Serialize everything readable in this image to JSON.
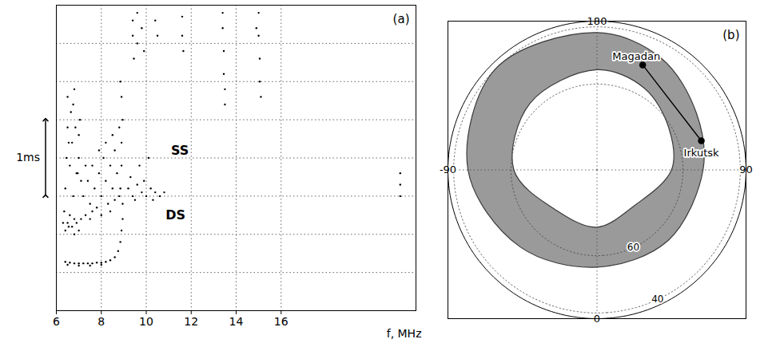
{
  "chart_data": [
    {
      "type": "scatter",
      "panel_label": "(a)",
      "x_label": "f, MHz",
      "xlim": [
        6,
        22
      ],
      "xticks": [
        6,
        8,
        10,
        12,
        14,
        16
      ],
      "ylim": [
        0,
        4
      ],
      "yticks": [
        0.5,
        1,
        1.5,
        2,
        2.5,
        3,
        3.5
      ],
      "grid": true,
      "tick_labels": "x",
      "color": "#000000",
      "points": [
        [
          6.4,
          0.64
        ],
        [
          6.6,
          0.63
        ],
        [
          6.8,
          0.62
        ],
        [
          7.0,
          0.62
        ],
        [
          7.2,
          0.62
        ],
        [
          7.4,
          0.62
        ],
        [
          7.6,
          0.62
        ],
        [
          7.8,
          0.63
        ],
        [
          8.0,
          0.63
        ],
        [
          8.2,
          0.64
        ],
        [
          8.4,
          0.66
        ],
        [
          8.6,
          0.7
        ],
        [
          8.75,
          0.78
        ],
        [
          8.85,
          0.9
        ],
        [
          8.9,
          1.05
        ],
        [
          8.95,
          1.2
        ],
        [
          6.5,
          0.6
        ],
        [
          7.0,
          0.59
        ],
        [
          7.5,
          0.59
        ],
        [
          8.0,
          0.6
        ],
        [
          6.35,
          1.3
        ],
        [
          6.4,
          1.6
        ],
        [
          6.45,
          2.0
        ],
        [
          6.5,
          2.4
        ],
        [
          6.5,
          2.8
        ],
        [
          6.55,
          1.1
        ],
        [
          6.6,
          1.9
        ],
        [
          6.65,
          2.6
        ],
        [
          6.7,
          2.2
        ],
        [
          6.75,
          1.5
        ],
        [
          6.8,
          2.9
        ],
        [
          6.85,
          2.4
        ],
        [
          6.9,
          1.8
        ],
        [
          6.4,
          1.05
        ],
        [
          6.6,
          1.25
        ],
        [
          6.8,
          1.2
        ],
        [
          6.55,
          2.2
        ],
        [
          6.75,
          2.7
        ],
        [
          6.3,
          1.15
        ],
        [
          6.5,
          1.15
        ],
        [
          6.7,
          1.1
        ],
        [
          6.9,
          1.15
        ],
        [
          7.1,
          1.2
        ],
        [
          7.3,
          1.25
        ],
        [
          7.5,
          1.2
        ],
        [
          6.8,
          1.0
        ],
        [
          7.0,
          1.05
        ],
        [
          7.2,
          1.5
        ],
        [
          7.4,
          1.7
        ],
        [
          7.5,
          1.4
        ],
        [
          7.6,
          1.9
        ],
        [
          7.7,
          1.6
        ],
        [
          7.8,
          1.35
        ],
        [
          7.9,
          1.8
        ],
        [
          8.0,
          1.5
        ],
        [
          8.1,
          2.0
        ],
        [
          8.2,
          1.7
        ],
        [
          8.3,
          1.4
        ],
        [
          8.4,
          1.9
        ],
        [
          8.5,
          1.6
        ],
        [
          8.6,
          2.1
        ],
        [
          8.7,
          1.8
        ],
        [
          8.8,
          1.5
        ],
        [
          7.3,
          1.9
        ],
        [
          7.6,
          1.3
        ],
        [
          8.0,
          1.25
        ],
        [
          8.4,
          1.3
        ],
        [
          8.6,
          1.45
        ],
        [
          7.9,
          2.1
        ],
        [
          8.2,
          2.2
        ],
        [
          7.1,
          1.7
        ],
        [
          8.5,
          2.3
        ],
        [
          7.0,
          2.0
        ],
        [
          7.0,
          2.3
        ],
        [
          7.05,
          2.5
        ],
        [
          6.95,
          1.8
        ],
        [
          8.85,
          1.6
        ],
        [
          8.9,
          1.9
        ],
        [
          8.9,
          2.2
        ],
        [
          8.95,
          2.5
        ],
        [
          8.9,
          2.8
        ],
        [
          8.85,
          3.0
        ],
        [
          8.95,
          1.4
        ],
        [
          8.8,
          2.4
        ],
        [
          9.2,
          1.6
        ],
        [
          9.4,
          1.5
        ],
        [
          9.6,
          1.65
        ],
        [
          9.8,
          1.55
        ],
        [
          10.0,
          1.5
        ],
        [
          10.2,
          1.6
        ],
        [
          10.4,
          1.55
        ],
        [
          10.6,
          1.5
        ],
        [
          9.5,
          1.45
        ],
        [
          9.9,
          1.7
        ],
        [
          10.3,
          1.45
        ],
        [
          9.3,
          1.75
        ],
        [
          10.8,
          1.55
        ],
        [
          9.7,
          1.9
        ],
        [
          10.1,
          2.0
        ],
        [
          9.4,
          3.6
        ],
        [
          9.4,
          3.8
        ],
        [
          9.45,
          3.3
        ],
        [
          9.6,
          3.9
        ],
        [
          9.6,
          3.5
        ],
        [
          9.8,
          3.7
        ],
        [
          9.9,
          3.4
        ],
        [
          10.4,
          3.8
        ],
        [
          10.5,
          3.6
        ],
        [
          11.6,
          3.85
        ],
        [
          11.6,
          3.6
        ],
        [
          11.65,
          3.4
        ],
        [
          13.4,
          3.9
        ],
        [
          13.4,
          3.7
        ],
        [
          13.45,
          3.4
        ],
        [
          13.45,
          3.1
        ],
        [
          13.5,
          2.9
        ],
        [
          13.5,
          2.7
        ],
        [
          15.0,
          3.9
        ],
        [
          15.0,
          3.6
        ],
        [
          15.05,
          3.3
        ],
        [
          15.05,
          3.0
        ],
        [
          15.1,
          2.8
        ],
        [
          14.9,
          3.7
        ],
        [
          21.3,
          1.5
        ],
        [
          21.3,
          1.65
        ],
        [
          21.3,
          1.8
        ]
      ],
      "annotations": [
        {
          "text": "SS",
          "x": 11.5,
          "y": 2.1
        },
        {
          "text": "DS",
          "x": 11.3,
          "y": 1.25
        }
      ],
      "scale_bar": {
        "label": "1ms",
        "from": 1.5,
        "to": 2.5
      }
    },
    {
      "type": "map",
      "panel_label": "(b)",
      "lat_limit": 38,
      "lat_ticks": [
        40,
        60
      ],
      "lon_ticks": [
        180,
        90,
        0,
        -90
      ],
      "grid": true,
      "oval": {
        "lon": [
          -180,
          -135,
          -90,
          -45,
          0,
          45,
          90,
          120,
          150
        ],
        "equatorward": [
          42,
          40,
          45,
          52,
          56,
          55,
          53,
          50,
          45
        ],
        "poleward": [
          55,
          57,
          61,
          70,
          70,
          72,
          64,
          61,
          57
        ],
        "color": "#9a9a9a"
      },
      "cities": {
        "names": [
          "Magadan",
          "Irkutsk"
        ],
        "lon": [
          156.5,
          105.6
        ],
        "lat": [
          50,
          52.2
        ],
        "marker": "circle",
        "line_style": "solid"
      }
    }
  ]
}
